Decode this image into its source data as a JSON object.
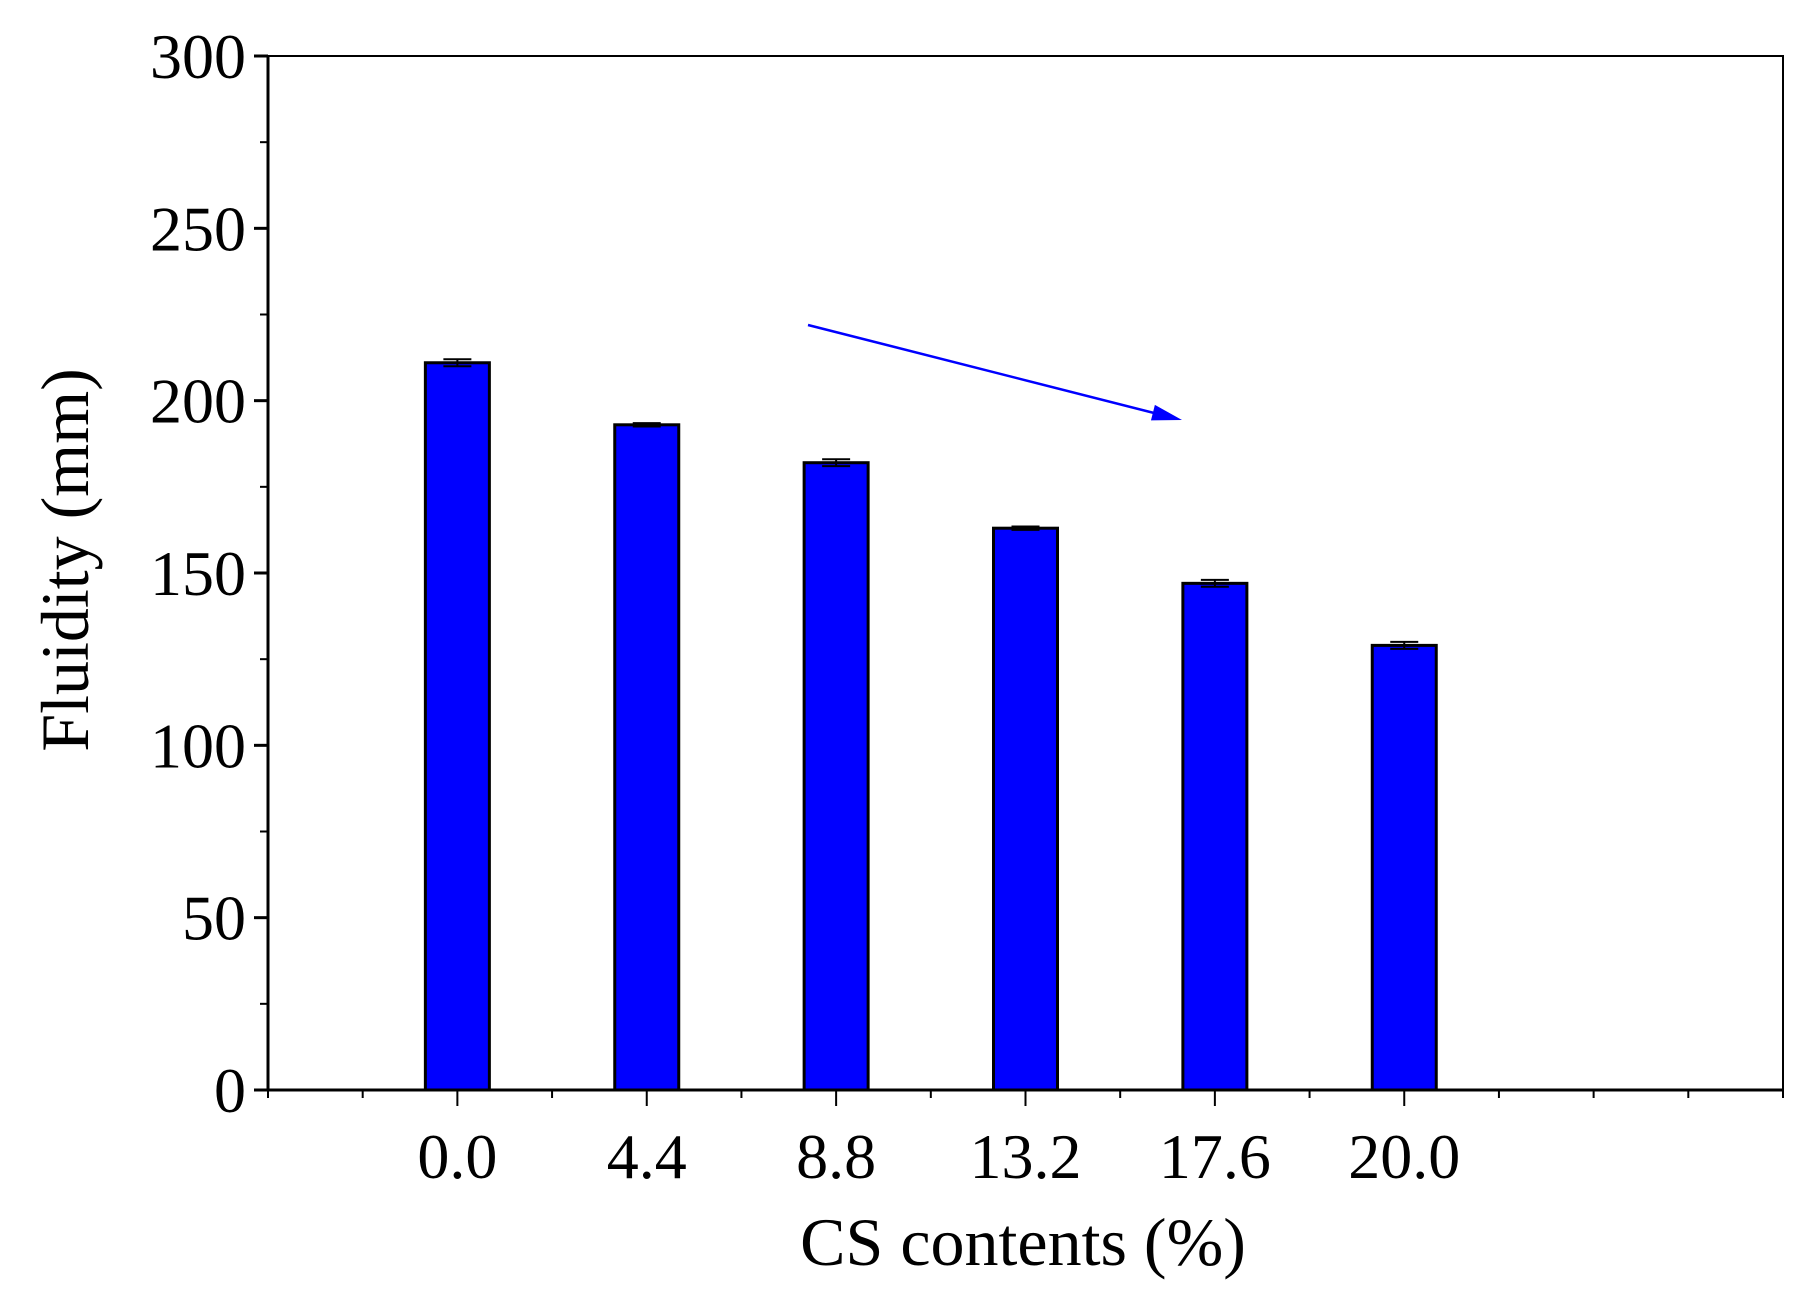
{
  "chart_data": {
    "type": "bar",
    "xlabel": "CS contents (%)",
    "ylabel": "Fluidity (mm)",
    "categories": [
      "0.0",
      "4.4",
      "8.8",
      "13.2",
      "17.6",
      "20.0"
    ],
    "values": [
      211,
      193,
      182,
      163,
      147,
      129
    ],
    "errors": [
      1,
      0.5,
      1,
      0.5,
      1,
      1
    ],
    "ylim": [
      0,
      300
    ],
    "yticks": [
      0,
      50,
      100,
      150,
      200,
      250,
      300
    ],
    "grid": false,
    "legend": "none",
    "annotation": {
      "type": "arrow",
      "meaning": "decreasing trend"
    },
    "colors": {
      "bar": "#0000ff",
      "arrow": "#0000ff",
      "axis": "#000000"
    }
  }
}
